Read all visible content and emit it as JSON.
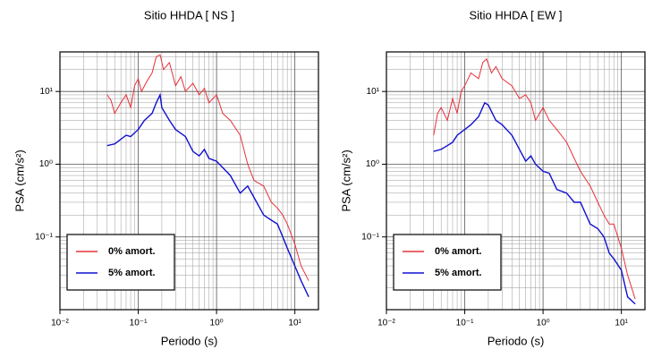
{
  "chart_data": [
    {
      "type": "line",
      "title": "Sitio HHDA [ NS ]",
      "xlabel": "Periodo (s)",
      "ylabel": "PSA (cm/s²)",
      "xscale": "log",
      "yscale": "log",
      "grid": true,
      "legend": "lower left",
      "xlim": [
        0.01,
        20
      ],
      "ylim": [
        0.01,
        35
      ],
      "xticks": [
        {
          "value": 0.01,
          "label": "10⁻²"
        },
        {
          "value": 0.1,
          "label": "10⁻¹"
        },
        {
          "value": 1,
          "label": "10⁰"
        },
        {
          "value": 10,
          "label": "10¹"
        }
      ],
      "yticks": [
        {
          "value": 0.1,
          "label": "10⁻¹"
        },
        {
          "value": 1,
          "label": "10⁰"
        },
        {
          "value": 10,
          "label": "10¹"
        }
      ],
      "series": [
        {
          "name": "0% amort.",
          "color": "#e8303a",
          "x": [
            0.04,
            0.045,
            0.05,
            0.06,
            0.07,
            0.08,
            0.09,
            0.1,
            0.11,
            0.13,
            0.15,
            0.17,
            0.19,
            0.21,
            0.25,
            0.3,
            0.35,
            0.4,
            0.5,
            0.6,
            0.7,
            0.8,
            1.0,
            1.2,
            1.5,
            2,
            2.5,
            3,
            4,
            5,
            6,
            7,
            8,
            10,
            12,
            15
          ],
          "values": [
            9,
            7.5,
            5,
            7,
            9,
            6,
            12,
            15,
            10,
            14,
            18,
            30,
            32,
            20,
            25,
            12,
            16,
            10,
            13,
            9,
            11,
            7,
            9,
            5,
            4,
            2.5,
            1,
            0.6,
            0.5,
            0.3,
            0.25,
            0.2,
            0.15,
            0.08,
            0.04,
            0.025
          ]
        },
        {
          "name": "5% amort.",
          "color": "#1010d0",
          "x": [
            0.04,
            0.05,
            0.06,
            0.07,
            0.08,
            0.1,
            0.12,
            0.15,
            0.17,
            0.19,
            0.2,
            0.25,
            0.3,
            0.4,
            0.5,
            0.6,
            0.7,
            0.8,
            1,
            1.2,
            1.5,
            2,
            2.5,
            3,
            4,
            5,
            6,
            7,
            8,
            10,
            12,
            15
          ],
          "values": [
            1.8,
            1.9,
            2.2,
            2.5,
            2.4,
            3,
            4,
            5,
            7,
            9,
            6,
            4,
            3,
            2.4,
            1.5,
            1.3,
            1.6,
            1.2,
            1.1,
            0.9,
            0.7,
            0.4,
            0.5,
            0.35,
            0.2,
            0.17,
            0.15,
            0.1,
            0.07,
            0.04,
            0.025,
            0.015
          ]
        }
      ]
    },
    {
      "type": "line",
      "title": "Sitio HHDA [ EW ]",
      "xlabel": "Periodo (s)",
      "ylabel": "PSA (cm/s²)",
      "xscale": "log",
      "yscale": "log",
      "grid": true,
      "legend": "lower left",
      "xlim": [
        0.01,
        20
      ],
      "ylim": [
        0.01,
        35
      ],
      "xticks": [
        {
          "value": 0.01,
          "label": "10⁻²"
        },
        {
          "value": 0.1,
          "label": "10⁻¹"
        },
        {
          "value": 1,
          "label": "10⁰"
        },
        {
          "value": 10,
          "label": "10¹"
        }
      ],
      "yticks": [
        {
          "value": 0.1,
          "label": "10⁻¹"
        },
        {
          "value": 1,
          "label": "10⁰"
        },
        {
          "value": 10,
          "label": "10¹"
        }
      ],
      "series": [
        {
          "name": "0% amort.",
          "color": "#e8303a",
          "x": [
            0.04,
            0.045,
            0.05,
            0.06,
            0.07,
            0.08,
            0.09,
            0.1,
            0.12,
            0.15,
            0.17,
            0.19,
            0.22,
            0.25,
            0.3,
            0.4,
            0.5,
            0.6,
            0.7,
            0.8,
            1,
            1.2,
            1.5,
            2,
            2.5,
            3,
            4,
            5,
            6,
            7,
            8,
            10,
            12,
            15
          ],
          "values": [
            2.5,
            5,
            6,
            4,
            8,
            5,
            10,
            12,
            18,
            15,
            25,
            28,
            18,
            22,
            15,
            12,
            8,
            9,
            7,
            4,
            6,
            4,
            3,
            2,
            1.2,
            0.8,
            0.5,
            0.3,
            0.2,
            0.15,
            0.15,
            0.07,
            0.03,
            0.014
          ]
        },
        {
          "name": "5% amort.",
          "color": "#1010d0",
          "x": [
            0.04,
            0.05,
            0.06,
            0.07,
            0.08,
            0.1,
            0.12,
            0.15,
            0.18,
            0.2,
            0.25,
            0.3,
            0.4,
            0.5,
            0.6,
            0.7,
            0.8,
            1,
            1.2,
            1.5,
            2,
            2.5,
            3,
            4,
            5,
            6,
            7,
            8,
            10,
            12,
            15
          ],
          "values": [
            1.5,
            1.6,
            1.8,
            2,
            2.5,
            3,
            3.5,
            4.5,
            7,
            6.5,
            4,
            3.5,
            2.5,
            1.6,
            1.1,
            1.3,
            1.0,
            0.8,
            0.75,
            0.45,
            0.4,
            0.3,
            0.3,
            0.15,
            0.13,
            0.1,
            0.06,
            0.05,
            0.035,
            0.015,
            0.012
          ]
        }
      ]
    }
  ]
}
